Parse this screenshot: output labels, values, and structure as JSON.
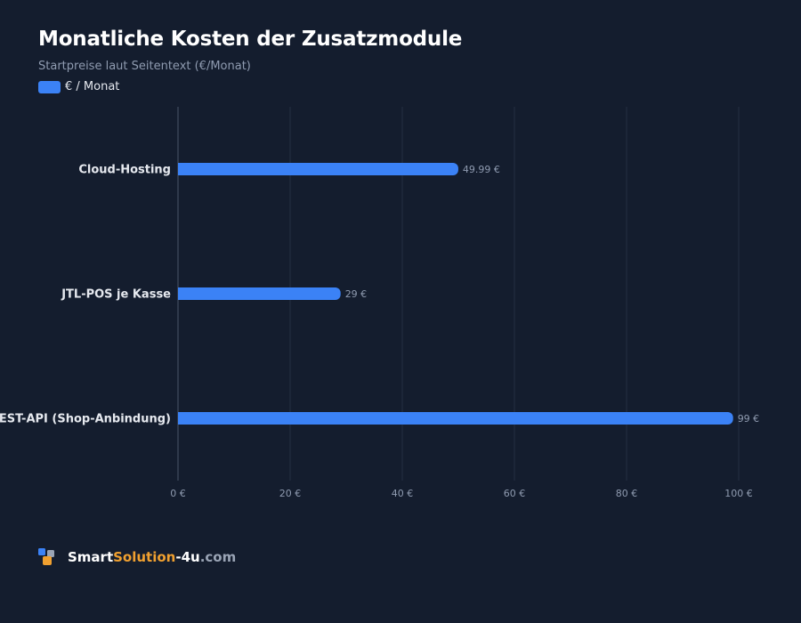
{
  "chart_data": {
    "type": "bar",
    "orientation": "horizontal",
    "title": "Monatliche Kosten der Zusatzmodule",
    "subtitle": "Startpreise laut Seitentext (€/Monat)",
    "categories": [
      "Cloud-Hosting",
      "JTL-POS je Kasse",
      "REST-API (Shop-Anbindung)"
    ],
    "series": [
      {
        "name": "€ / Monat",
        "values": [
          49.99,
          29,
          99
        ],
        "value_labels": [
          "49.99 €",
          "29 €",
          "99 €"
        ],
        "color": "#3b82f6"
      }
    ],
    "xlim": [
      0,
      100
    ],
    "x_ticks": [
      0,
      20,
      40,
      60,
      80,
      100
    ],
    "x_tick_labels": [
      "0 €",
      "20 €",
      "40 €",
      "60 €",
      "80 €",
      "100 €"
    ],
    "grid": true,
    "legend_position": "top-left"
  },
  "footer": {
    "brand_part1": "Smart",
    "brand_part2": "Solution",
    "brand_part3": "-4u",
    "brand_part4": ".com",
    "logo_icon": "squares-logo-icon"
  },
  "colors": {
    "background": "#141d2e",
    "bar": "#3b82f6",
    "gridline": "#253043",
    "axis": "#4a5568",
    "tick_label": "#8f9bb0",
    "category_label": "#e6e9ef",
    "brand_white": "#ffffff",
    "brand_orange": "#f0a030",
    "brand_gray": "#9aa4b5"
  }
}
